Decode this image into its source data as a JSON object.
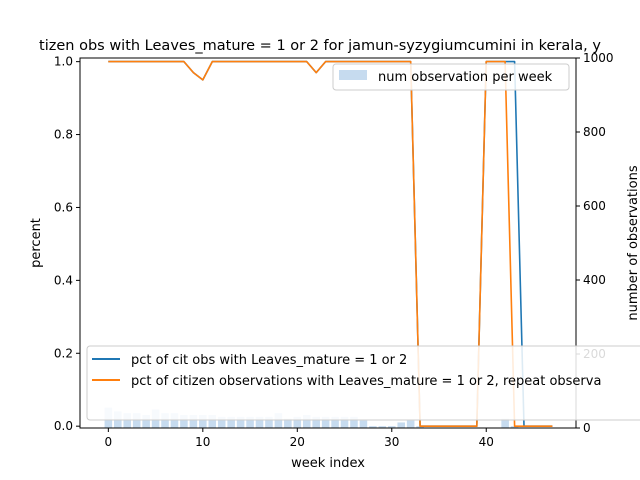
{
  "chart_data": {
    "type": "line",
    "title": "tizen obs with Leaves_mature = 1 or 2 for jamun-syzygiumcumini in kerala, y",
    "xlabel": "week index",
    "ylabel": "percent",
    "y2label": "number of observations",
    "xlim": [
      -3,
      49.5
    ],
    "ylim": [
      -0.005,
      1.01
    ],
    "y2lim": [
      0,
      1000
    ],
    "xticks": [
      0,
      10,
      20,
      30,
      40
    ],
    "yticks": [
      0.0,
      0.2,
      0.4,
      0.6,
      0.8,
      1.0
    ],
    "y2ticks": [
      0,
      200,
      400,
      600,
      800,
      1000
    ],
    "grid": false,
    "legend_bars": {
      "label": "num observation per week",
      "placement": "top-right"
    },
    "legend_lines_placement": "bottom",
    "bars": {
      "name": "num observation per week",
      "color": "#c6dbef",
      "x": [
        0,
        1,
        2,
        3,
        4,
        5,
        6,
        7,
        8,
        9,
        10,
        11,
        12,
        13,
        14,
        15,
        16,
        17,
        18,
        19,
        20,
        21,
        22,
        23,
        24,
        25,
        26,
        27,
        28,
        29,
        30,
        31,
        32,
        33,
        34,
        35,
        36,
        37,
        38,
        39,
        40,
        41,
        42,
        43,
        44,
        45,
        46,
        47
      ],
      "values": [
        55,
        45,
        40,
        40,
        35,
        50,
        40,
        40,
        35,
        35,
        35,
        35,
        30,
        30,
        30,
        30,
        30,
        30,
        40,
        25,
        30,
        35,
        30,
        30,
        30,
        30,
        30,
        20,
        5,
        5,
        5,
        15,
        20,
        5,
        0,
        0,
        0,
        0,
        0,
        0,
        0,
        0,
        25,
        5,
        0,
        0,
        0,
        0
      ]
    },
    "series": [
      {
        "name": "pct of cit obs with Leaves_mature = 1 or 2",
        "color": "#1f77b4",
        "x": [
          0,
          1,
          2,
          3,
          4,
          5,
          6,
          7,
          8,
          9,
          10,
          11,
          12,
          13,
          14,
          15,
          16,
          17,
          18,
          19,
          20,
          21,
          22,
          23,
          24,
          25,
          26,
          27,
          28,
          29,
          30,
          31,
          32,
          33,
          34,
          35,
          36,
          37,
          38,
          39,
          40,
          41,
          42,
          43,
          44,
          45,
          46,
          47
        ],
        "values": [
          1,
          1,
          1,
          1,
          1,
          1,
          1,
          1,
          1,
          0.97,
          0.95,
          1,
          1,
          1,
          1,
          1,
          1,
          1,
          1,
          1,
          1,
          1,
          0.97,
          1,
          1,
          1,
          1,
          1,
          1,
          1,
          1,
          1,
          1,
          0,
          0,
          0,
          0,
          0,
          0,
          0,
          1,
          1,
          1,
          1,
          0,
          0,
          0,
          0
        ]
      },
      {
        "name": "pct of citizen observations with Leaves_mature = 1 or 2, repeat observa",
        "color": "#ff7f0e",
        "x": [
          0,
          1,
          2,
          3,
          4,
          5,
          6,
          7,
          8,
          9,
          10,
          11,
          12,
          13,
          14,
          15,
          16,
          17,
          18,
          19,
          20,
          21,
          22,
          23,
          24,
          25,
          26,
          27,
          28,
          29,
          30,
          31,
          32,
          33,
          34,
          35,
          36,
          37,
          38,
          39,
          40,
          41,
          42,
          43,
          44,
          45,
          46,
          47
        ],
        "values": [
          1,
          1,
          1,
          1,
          1,
          1,
          1,
          1,
          1,
          0.97,
          0.95,
          1,
          1,
          1,
          1,
          1,
          1,
          1,
          1,
          1,
          1,
          1,
          0.97,
          1,
          1,
          1,
          1,
          1,
          1,
          1,
          1,
          1,
          1,
          0,
          0,
          0,
          0,
          0,
          0,
          0,
          1,
          1,
          1,
          0,
          0,
          0,
          0,
          0
        ]
      }
    ]
  }
}
